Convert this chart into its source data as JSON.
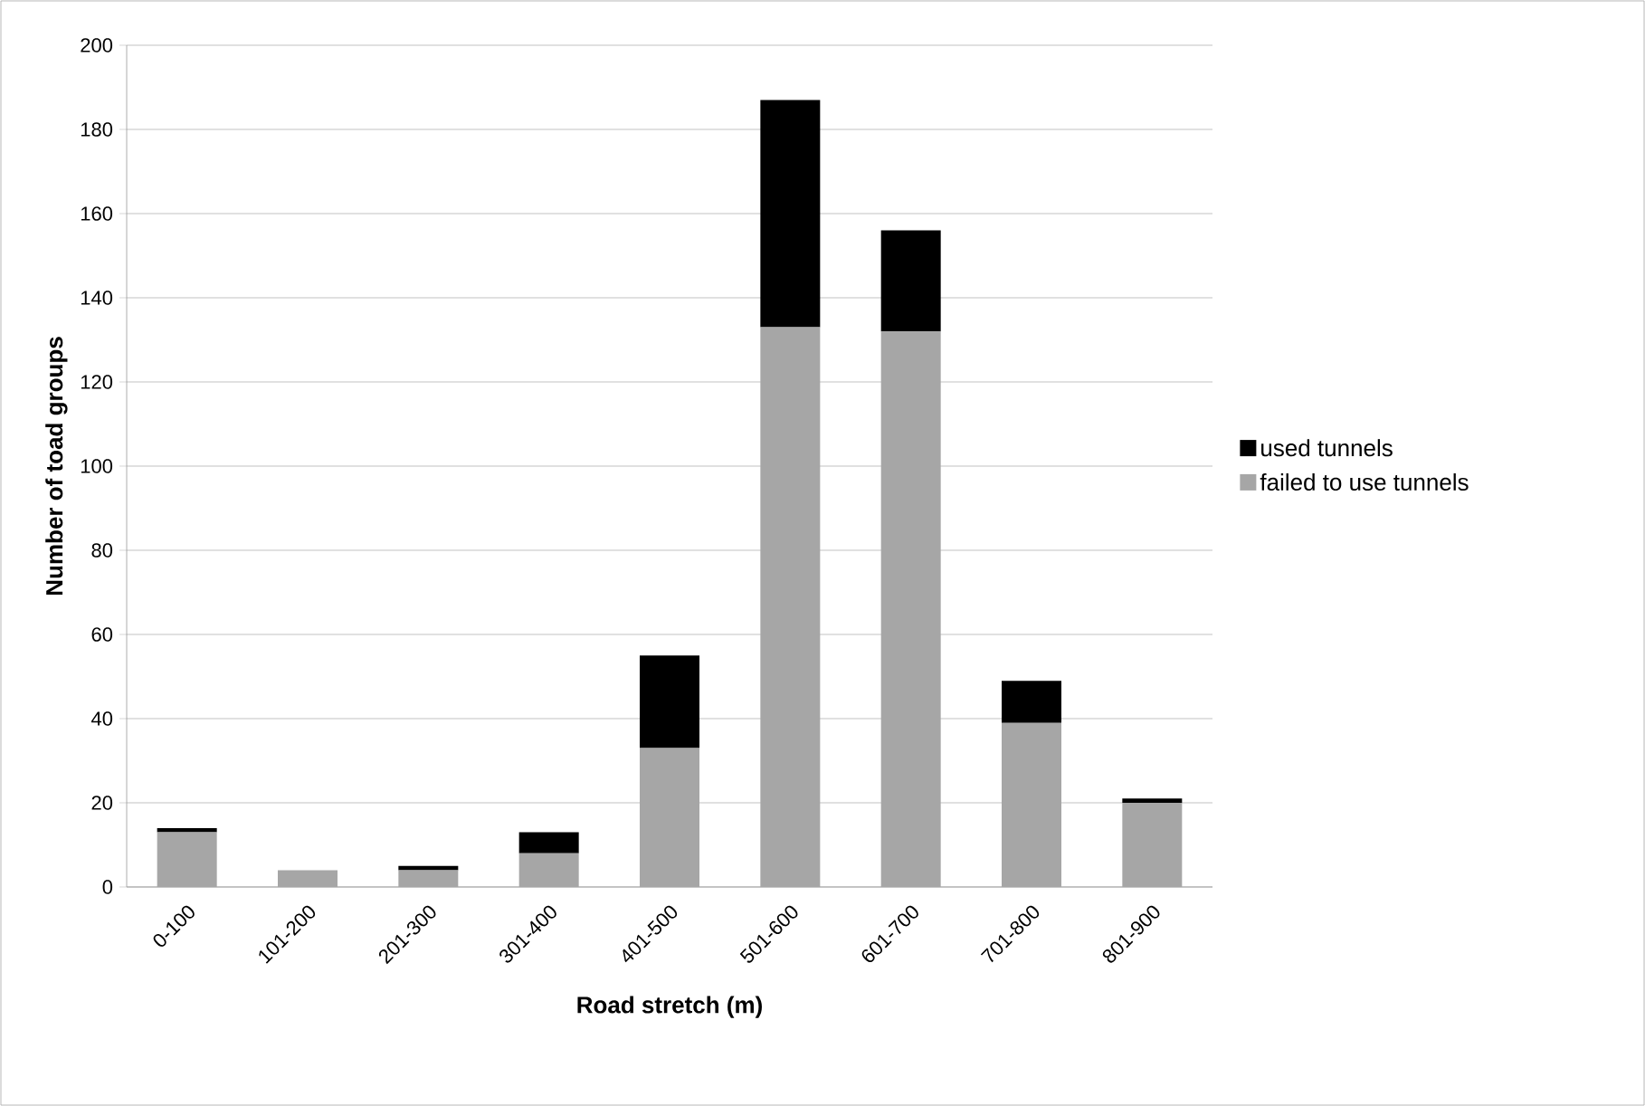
{
  "chart_data": {
    "type": "bar",
    "stacked": true,
    "xlabel": "Road stretch (m)",
    "ylabel": "Number of toad groups",
    "categories": [
      "0-100",
      "101-200",
      "201-300",
      "301-400",
      "401-500",
      "501-600",
      "601-700",
      "701-800",
      "801-900"
    ],
    "series": [
      {
        "name": "failed to use tunnels",
        "color": "#a6a6a6",
        "values": [
          13,
          4,
          4,
          8,
          33,
          133,
          132,
          39,
          20
        ]
      },
      {
        "name": "used tunnels",
        "color": "#000000",
        "values": [
          1,
          0,
          1,
          5,
          22,
          54,
          24,
          10,
          1
        ]
      }
    ],
    "ylim": [
      0,
      200
    ],
    "yticks": [
      0,
      20,
      40,
      60,
      80,
      100,
      120,
      140,
      160,
      180,
      200
    ],
    "grid": "y",
    "legend": "right"
  }
}
